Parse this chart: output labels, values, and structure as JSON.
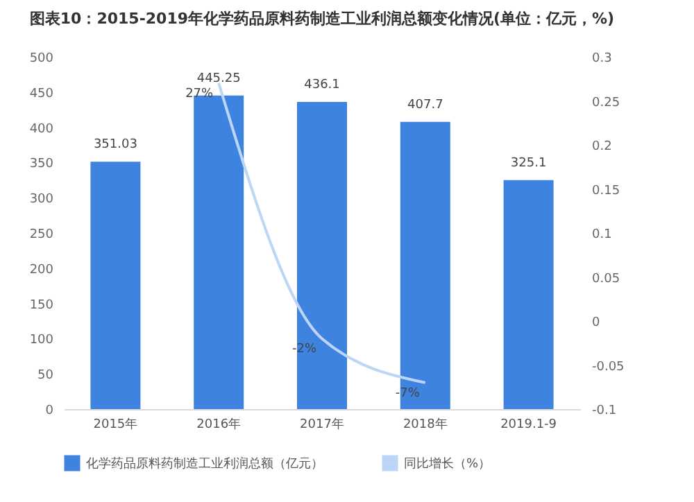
{
  "chart_data": {
    "type": "bar",
    "title": "图表10：2015-2019年化学药品原料药制造工业利润总额变化情况(单位：亿元，%)",
    "categories": [
      "2015年",
      "2016年",
      "2017年",
      "2018年",
      "2019.1-9"
    ],
    "series": [
      {
        "name": "化学药品原料药制造工业利润总额（亿元）",
        "color": "#3f83e0",
        "values": [
          351.03,
          445.25,
          436.1,
          407.7,
          325.1
        ],
        "value_labels": [
          "351.03",
          "445.25",
          "436.1",
          "407.7",
          "325.1"
        ]
      },
      {
        "name": "同比增长（%）",
        "type": "line",
        "axis": "y2",
        "color": "#bcd6f7",
        "values": [
          null,
          0.27,
          -0.02,
          -0.07,
          null
        ],
        "value_labels": [
          null,
          "27%",
          "-2%",
          "-7%",
          null
        ]
      }
    ],
    "ylim": [
      0,
      500
    ],
    "yticks": [
      0,
      50,
      100,
      150,
      200,
      250,
      300,
      350,
      400,
      450,
      500
    ],
    "y2lim": [
      -0.1,
      0.3
    ],
    "y2ticks": [
      -0.1,
      -0.05,
      0,
      0.05,
      0.1,
      0.15,
      0.2,
      0.25,
      0.3
    ],
    "grid": false,
    "legend": "bottom",
    "marker": "none",
    "line_style": "solid"
  }
}
